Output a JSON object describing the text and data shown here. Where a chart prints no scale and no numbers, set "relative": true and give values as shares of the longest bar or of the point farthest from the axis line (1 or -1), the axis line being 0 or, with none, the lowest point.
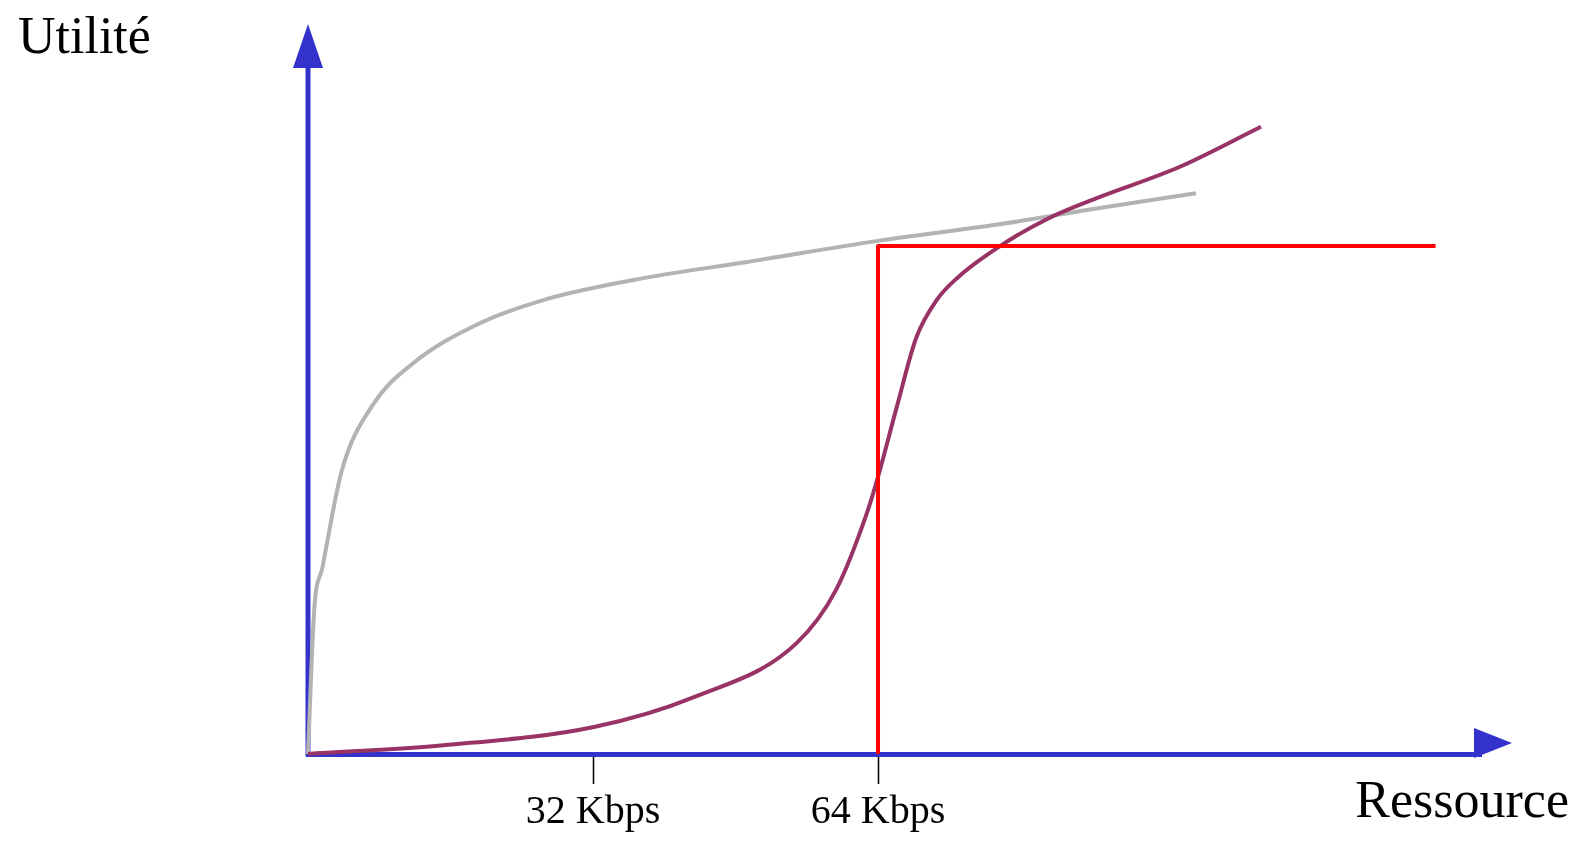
{
  "chart_data": {
    "type": "line",
    "relative": true,
    "xlabel": "Ressource",
    "ylabel": "Utilité",
    "xlim": [
      0,
      131.7
    ],
    "xticks": [
      {
        "value": 32,
        "label": "32 Kbps"
      },
      {
        "value": 64,
        "label": "64 Kbps"
      }
    ],
    "grid": false,
    "legend": false,
    "marker": "none",
    "line_style": "solid",
    "series": [
      {
        "color": "#b3b3b3",
        "x": [
          0,
          0.7,
          1.6,
          3.8,
          7.2,
          11.8,
          18.6,
          26.5,
          37.8,
          49.1,
          64,
          77.4,
          88.7,
          99.7
        ],
        "values": [
          0,
          0.23,
          0.296,
          0.452,
          0.555,
          0.623,
          0.682,
          0.724,
          0.759,
          0.784,
          0.818,
          0.844,
          0.87,
          0.894
        ]
      },
      {
        "color": "#993366",
        "x": [
          0,
          15.2,
          32.1,
          43.4,
          54.8,
          59.3,
          62.7,
          64,
          66.1,
          68.3,
          70.6,
          72.9,
          77.4,
          83,
          88.7,
          97.7,
          107
        ],
        "values": [
          0,
          0.014,
          0.043,
          0.091,
          0.176,
          0.262,
          0.382,
          0.442,
          0.553,
          0.664,
          0.724,
          0.759,
          0.807,
          0.853,
          0.887,
          0.935,
          1
        ]
      },
      {
        "color": "#ff0000",
        "x": [
          64,
          64,
          126.6
        ],
        "values": [
          0,
          0.81,
          0.81
        ]
      }
    ]
  }
}
